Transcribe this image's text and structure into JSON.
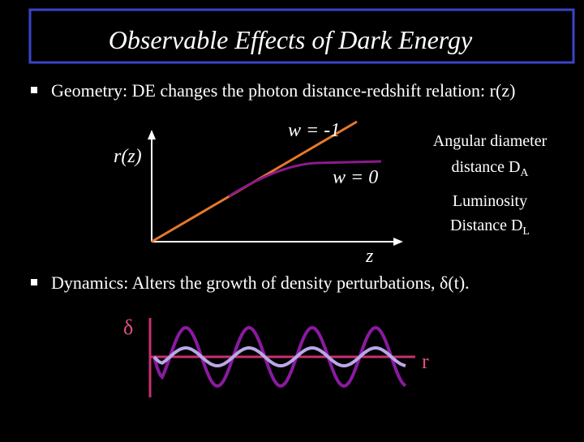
{
  "title": "Observable Effects of Dark Energy",
  "bullets": [
    {
      "text": "Geometry: DE changes the photon distance-redshift relation: r(z)"
    },
    {
      "text": "Dynamics: Alters the growth of density perturbations, δ(t)."
    }
  ],
  "distance_figure": {
    "y_label": "r(z)",
    "x_label": "z",
    "curve_labels": [
      "w = -1",
      "w = 0"
    ],
    "notes": [
      {
        "lines": [
          "Angular diameter",
          "distance D"
        ],
        "subscript": "A"
      },
      {
        "lines": [
          "Luminosity",
          "Distance D"
        ],
        "subscript": "L"
      }
    ]
  },
  "growth_figure": {
    "y_label": "δ",
    "x_label": "r"
  }
}
